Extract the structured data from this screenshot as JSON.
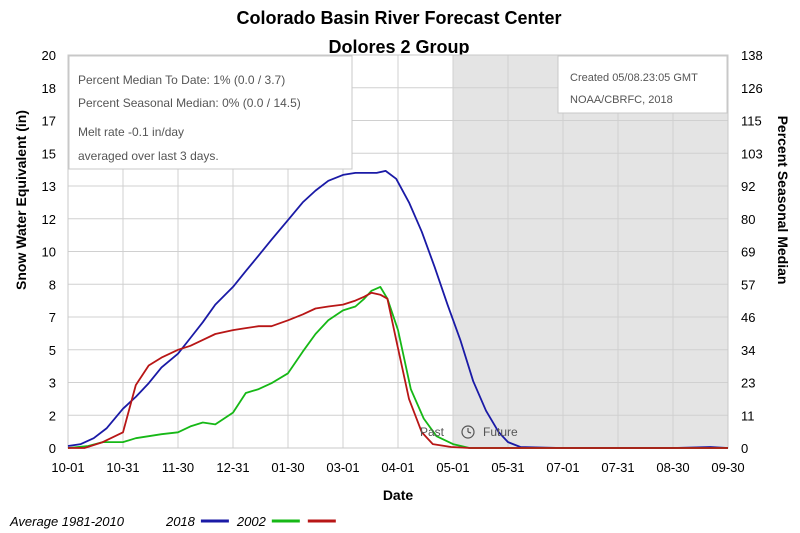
{
  "chart_data": {
    "type": "line",
    "title": "Colorado Basin River Forecast Center",
    "subtitle": "Dolores 2 Group",
    "xlabel": "Date",
    "ylabel": "Snow Water Equivalent (in)",
    "y2label": "Percent Seasonal Median",
    "y_ticks": [
      "20",
      "18",
      "17",
      "15",
      "13",
      "12",
      "10",
      "8",
      "7",
      "5",
      "3",
      "2",
      "0"
    ],
    "y2_ticks": [
      "138",
      "126",
      "115",
      "103",
      "92",
      "80",
      "69",
      "57",
      "46",
      "34",
      "23",
      "11",
      "0"
    ],
    "x_ticks": [
      "10-01",
      "10-31",
      "11-30",
      "12-31",
      "01-30",
      "03-01",
      "04-01",
      "05-01",
      "05-31",
      "07-01",
      "07-31",
      "08-30",
      "09-30"
    ],
    "ylim": [
      0,
      20
    ],
    "xlim": [
      "10-01",
      "09-30"
    ],
    "grid": true,
    "future_shading_start": "05-01",
    "annotations": {
      "stats_line1": "Percent Median To Date: 1% (0.0 / 3.7)",
      "stats_line2": "Percent Seasonal Median: 0% (0.0 / 14.5)",
      "melt_line1": "Melt rate -0.1 in/day",
      "melt_line2": "averaged over last 3 days.",
      "created": "Created 05/08.23:05 GMT",
      "credit": "NOAA/CBRFC, 2018",
      "past": "Past",
      "future": "Future"
    },
    "legend": {
      "placement": "bottom-left",
      "entries": [
        {
          "name": "Average 1981-2010",
          "color": "#ffffff"
        },
        {
          "name": "2018",
          "color": "#1a1aa6"
        },
        {
          "name": "2002",
          "color": "#16b816"
        },
        {
          "name": "",
          "color": "#b81616"
        }
      ]
    },
    "series": [
      {
        "name": "2018",
        "color": "#1a1aa6",
        "x": [
          "10-01",
          "10-08",
          "10-15",
          "10-22",
          "10-31",
          "11-07",
          "11-14",
          "11-21",
          "11-30",
          "12-07",
          "12-14",
          "12-21",
          "12-31",
          "01-07",
          "01-14",
          "01-21",
          "01-30",
          "02-07",
          "02-14",
          "02-21",
          "03-01",
          "03-08",
          "03-15",
          "03-20",
          "03-25",
          "03-31",
          "04-07",
          "04-14",
          "04-21",
          "04-28",
          "05-05",
          "05-12",
          "05-19",
          "05-26",
          "05-31",
          "06-07",
          "06-30",
          "07-31",
          "08-30",
          "09-20",
          "09-30"
        ],
        "values": [
          0.1,
          0.2,
          0.5,
          1.0,
          2.0,
          2.6,
          3.3,
          4.1,
          4.8,
          5.6,
          6.4,
          7.3,
          8.2,
          9.0,
          9.8,
          10.6,
          11.6,
          12.5,
          13.1,
          13.6,
          13.9,
          14.0,
          14.0,
          14.0,
          14.1,
          13.7,
          12.5,
          11.0,
          9.2,
          7.3,
          5.5,
          3.4,
          1.9,
          0.8,
          0.3,
          0.05,
          0.0,
          0.0,
          0.0,
          0.05,
          0.0
        ]
      },
      {
        "name": "2002",
        "color": "#16b816",
        "x": [
          "10-01",
          "10-12",
          "10-20",
          "10-31",
          "11-07",
          "11-14",
          "11-21",
          "11-30",
          "12-07",
          "12-14",
          "12-21",
          "12-31",
          "01-07",
          "01-14",
          "01-21",
          "01-30",
          "02-07",
          "02-14",
          "02-21",
          "03-01",
          "03-08",
          "03-13",
          "03-17",
          "03-22",
          "03-26",
          "04-01",
          "04-08",
          "04-15",
          "04-22",
          "05-01",
          "05-10",
          "05-31",
          "09-30"
        ],
        "values": [
          0.0,
          0.1,
          0.3,
          0.3,
          0.5,
          0.6,
          0.7,
          0.8,
          1.1,
          1.3,
          1.2,
          1.8,
          2.8,
          3.0,
          3.3,
          3.8,
          4.9,
          5.8,
          6.5,
          7.0,
          7.2,
          7.6,
          8.0,
          8.2,
          7.6,
          6.0,
          3.0,
          1.5,
          0.6,
          0.2,
          0.0,
          0.0,
          0.0
        ]
      },
      {
        "name": "",
        "color": "#b81616",
        "x": [
          "10-01",
          "10-10",
          "10-20",
          "10-31",
          "11-07",
          "11-14",
          "11-21",
          "11-30",
          "12-07",
          "12-14",
          "12-21",
          "12-31",
          "01-07",
          "01-14",
          "01-21",
          "01-30",
          "02-07",
          "02-14",
          "02-21",
          "03-01",
          "03-08",
          "03-13",
          "03-17",
          "03-22",
          "03-26",
          "03-31",
          "04-07",
          "04-14",
          "04-20",
          "04-30",
          "05-10",
          "05-31",
          "09-30"
        ],
        "values": [
          0.0,
          0.0,
          0.3,
          0.8,
          3.2,
          4.2,
          4.6,
          5.0,
          5.2,
          5.5,
          5.8,
          6.0,
          6.1,
          6.2,
          6.2,
          6.5,
          6.8,
          7.1,
          7.2,
          7.3,
          7.5,
          7.7,
          7.9,
          7.8,
          7.6,
          5.5,
          2.5,
          0.8,
          0.2,
          0.05,
          0.0,
          0.0,
          0.0
        ]
      }
    ]
  }
}
